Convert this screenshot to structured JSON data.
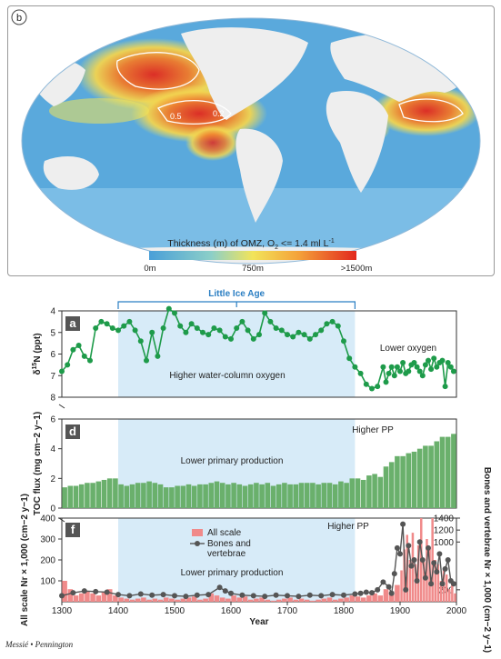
{
  "map": {
    "panel_label": "b",
    "colorbar_title_pre": "Thickness (m) of OMZ, O",
    "colorbar_title_sub": "2",
    "colorbar_title_post": " <= 1.4 ml L",
    "colorbar_title_sup": "-1",
    "colorbar_ticks": [
      "0m",
      "750m",
      ">1500m"
    ],
    "contour_labels": [
      "0.5",
      "0.2"
    ],
    "colors": {
      "low": "#4a9fd8",
      "mid": "#f2e45a",
      "high": "#e2281d",
      "land": "#eeeeee",
      "ocean": "#5aa9dc"
    }
  },
  "chart_data": [
    {
      "type": "line",
      "panel": "a",
      "ylabel": "δ15N (ppt)",
      "ylim": [
        8,
        4
      ],
      "xlim": [
        1300,
        2000
      ],
      "yticks": [
        4,
        5,
        6,
        7,
        8
      ],
      "shaded_range": [
        1400,
        1820
      ],
      "bracket_label": "Little Ice Age",
      "annotations": [
        "Higher water-column oxygen",
        "Lower oxygen"
      ],
      "color": "#1e9b4a",
      "x": [
        1300,
        1310,
        1320,
        1330,
        1340,
        1350,
        1360,
        1370,
        1380,
        1390,
        1400,
        1410,
        1420,
        1430,
        1440,
        1450,
        1460,
        1470,
        1480,
        1490,
        1500,
        1510,
        1520,
        1530,
        1540,
        1550,
        1560,
        1570,
        1580,
        1590,
        1600,
        1610,
        1620,
        1630,
        1640,
        1650,
        1660,
        1670,
        1680,
        1690,
        1700,
        1710,
        1720,
        1730,
        1740,
        1750,
        1760,
        1770,
        1780,
        1790,
        1800,
        1810,
        1820,
        1830,
        1840,
        1850,
        1860,
        1870,
        1875,
        1880,
        1885,
        1890,
        1895,
        1900,
        1905,
        1910,
        1915,
        1920,
        1925,
        1930,
        1935,
        1940,
        1945,
        1950,
        1955,
        1960,
        1965,
        1970,
        1975,
        1980,
        1985,
        1990,
        1995
      ],
      "y": [
        6.8,
        6.5,
        5.8,
        5.6,
        6.1,
        6.3,
        4.8,
        4.5,
        4.6,
        4.8,
        4.9,
        4.7,
        4.5,
        4.9,
        5.4,
        6.3,
        5.0,
        6.1,
        4.8,
        3.9,
        4.1,
        4.7,
        5.0,
        4.6,
        4.8,
        5.0,
        5.1,
        4.8,
        4.9,
        5.2,
        5.3,
        4.8,
        4.5,
        4.9,
        5.3,
        5.1,
        4.1,
        4.5,
        4.8,
        4.9,
        5.1,
        5.2,
        5.0,
        5.1,
        5.3,
        5.1,
        4.9,
        4.6,
        4.5,
        4.7,
        5.4,
        6.2,
        6.6,
        6.9,
        7.4,
        7.6,
        7.5,
        6.6,
        7.3,
        6.9,
        6.6,
        7.0,
        6.6,
        6.8,
        6.4,
        6.9,
        6.8,
        6.5,
        6.4,
        6.6,
        6.8,
        7.0,
        6.5,
        6.3,
        6.7,
        6.2,
        6.6,
        6.4,
        6.3,
        7.5,
        6.4,
        6.6,
        6.8
      ]
    },
    {
      "type": "bar",
      "panel": "d",
      "ylabel": "TOC flux (mg cm−2 y−1)",
      "ylim": [
        0,
        6
      ],
      "xlim": [
        1300,
        2000
      ],
      "yticks": [
        0,
        2,
        4,
        6
      ],
      "shaded_range": [
        1400,
        1820
      ],
      "annotations": [
        "Lower primary production",
        "Higher PP"
      ],
      "color": "#6ab06c",
      "x": [
        1300,
        1310,
        1320,
        1330,
        1340,
        1350,
        1360,
        1370,
        1380,
        1390,
        1400,
        1410,
        1420,
        1430,
        1440,
        1450,
        1460,
        1470,
        1480,
        1490,
        1500,
        1510,
        1520,
        1530,
        1540,
        1550,
        1560,
        1570,
        1580,
        1590,
        1600,
        1610,
        1620,
        1630,
        1640,
        1650,
        1660,
        1670,
        1680,
        1690,
        1700,
        1710,
        1720,
        1730,
        1740,
        1750,
        1760,
        1770,
        1780,
        1790,
        1800,
        1810,
        1820,
        1830,
        1840,
        1850,
        1860,
        1870,
        1880,
        1890,
        1900,
        1910,
        1920,
        1930,
        1940,
        1950,
        1960,
        1970,
        1980,
        1990
      ],
      "values": [
        1.4,
        1.5,
        1.5,
        1.6,
        1.7,
        1.7,
        1.8,
        1.9,
        2.0,
        2.0,
        1.6,
        1.5,
        1.6,
        1.7,
        1.7,
        1.8,
        1.7,
        1.6,
        1.4,
        1.4,
        1.5,
        1.5,
        1.6,
        1.5,
        1.6,
        1.6,
        1.7,
        1.8,
        1.7,
        1.6,
        1.7,
        1.6,
        1.5,
        1.6,
        1.7,
        1.6,
        1.7,
        1.5,
        1.6,
        1.7,
        1.6,
        1.6,
        1.7,
        1.7,
        1.7,
        1.6,
        1.7,
        1.7,
        1.6,
        1.8,
        1.7,
        2.0,
        2.0,
        1.9,
        2.2,
        2.3,
        2.1,
        2.8,
        3.1,
        3.5,
        3.5,
        3.7,
        3.8,
        4.0,
        4.2,
        4.2,
        4.5,
        4.8,
        4.8,
        5.0
      ]
    },
    {
      "type": "bar",
      "panel": "f",
      "ylabel": "All scale Nr × 1,000 (cm−2 y−1)",
      "ylabel_right": "Bones and vertebrae Nr × 1,000 (cm−2 y−1)",
      "xlabel": "Year",
      "ylim": [
        0,
        400
      ],
      "ylim_right": [
        0,
        1400
      ],
      "xlim": [
        1300,
        2000
      ],
      "xticks": [
        1300,
        1400,
        1500,
        1600,
        1700,
        1800,
        1900,
        2000
      ],
      "yticks": [
        100,
        200,
        300,
        400
      ],
      "yticks_right": [
        200,
        1000,
        1200,
        1400
      ],
      "shaded_range": [
        1400,
        1820
      ],
      "annotations": [
        "Lower primary production",
        "Higher PP"
      ],
      "legend": [
        "All scale",
        "Bones and vertebrae"
      ],
      "legend_position": "top-center",
      "series": [
        {
          "name": "All scale",
          "color": "#f08a8a",
          "x": [
            1300,
            1310,
            1320,
            1330,
            1340,
            1350,
            1360,
            1370,
            1380,
            1390,
            1400,
            1410,
            1420,
            1430,
            1440,
            1450,
            1460,
            1470,
            1480,
            1490,
            1500,
            1510,
            1520,
            1530,
            1540,
            1550,
            1560,
            1570,
            1580,
            1590,
            1600,
            1610,
            1620,
            1630,
            1640,
            1650,
            1660,
            1670,
            1680,
            1690,
            1700,
            1710,
            1720,
            1730,
            1740,
            1750,
            1760,
            1770,
            1780,
            1790,
            1800,
            1810,
            1820,
            1830,
            1840,
            1850,
            1860,
            1870,
            1880,
            1890,
            1900,
            1905,
            1910,
            1915,
            1920,
            1925,
            1930,
            1935,
            1940,
            1945,
            1950,
            1955,
            1960,
            1965,
            1970,
            1975,
            1980,
            1985,
            1990,
            1995
          ],
          "values": [
            100,
            60,
            30,
            40,
            50,
            40,
            30,
            45,
            60,
            30,
            20,
            15,
            10,
            15,
            20,
            10,
            15,
            10,
            20,
            15,
            10,
            15,
            20,
            25,
            10,
            15,
            40,
            30,
            20,
            15,
            30,
            20,
            25,
            10,
            15,
            20,
            10,
            5,
            10,
            15,
            20,
            10,
            15,
            10,
            5,
            10,
            15,
            20,
            10,
            15,
            20,
            30,
            25,
            20,
            30,
            40,
            30,
            60,
            50,
            80,
            150,
            250,
            320,
            200,
            330,
            180,
            270,
            400,
            190,
            300,
            250,
            400,
            200,
            180,
            100,
            150,
            130,
            60,
            90,
            40
          ]
        },
        {
          "name": "Bones and vertebrae",
          "color": "#555555",
          "x": [
            1300,
            1320,
            1340,
            1360,
            1380,
            1400,
            1420,
            1440,
            1460,
            1480,
            1500,
            1520,
            1540,
            1560,
            1580,
            1590,
            1600,
            1620,
            1640,
            1660,
            1680,
            1700,
            1720,
            1740,
            1760,
            1780,
            1800,
            1820,
            1830,
            1840,
            1850,
            1860,
            1870,
            1880,
            1885,
            1890,
            1895,
            1900,
            1905,
            1910,
            1915,
            1920,
            1925,
            1930,
            1935,
            1940,
            1945,
            1950,
            1955,
            1960,
            1965,
            1970,
            1975,
            1980,
            1985,
            1990,
            1995
          ],
          "values": [
            100,
            150,
            180,
            170,
            160,
            120,
            100,
            130,
            110,
            120,
            100,
            90,
            110,
            120,
            240,
            180,
            140,
            110,
            100,
            90,
            110,
            100,
            90,
            110,
            100,
            120,
            110,
            130,
            140,
            160,
            150,
            200,
            330,
            250,
            140,
            470,
            900,
            800,
            1300,
            200,
            940,
            600,
            700,
            350,
            1000,
            700,
            400,
            900,
            300,
            650,
            500,
            800,
            300,
            550,
            700,
            350,
            300
          ]
        }
      ]
    }
  ]
}
